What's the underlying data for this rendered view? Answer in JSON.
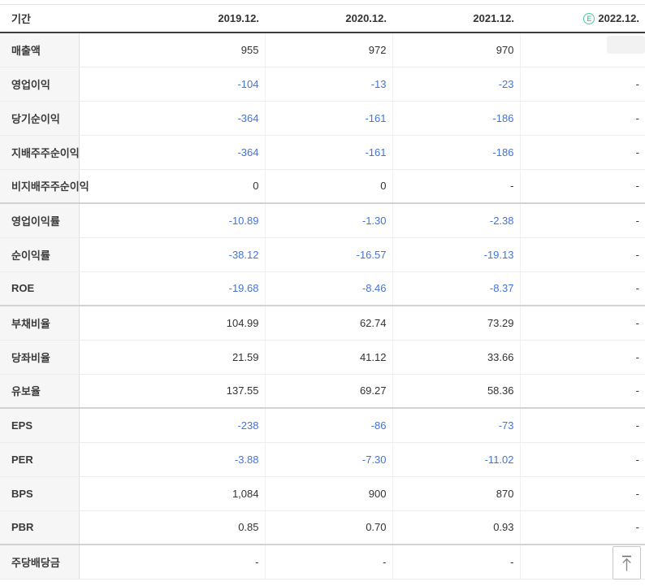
{
  "page": {
    "corner_label": "기간",
    "columns": [
      {
        "label": "2019.12.",
        "estimate": false
      },
      {
        "label": "2020.12.",
        "estimate": false
      },
      {
        "label": "2021.12.",
        "estimate": false
      },
      {
        "label": "2022.12.",
        "estimate": true
      }
    ],
    "estimate_icon": {
      "name": "estimate-badge-icon",
      "letter": "E",
      "color": "#4ecba0"
    },
    "rows": [
      {
        "label": "매출액",
        "values": [
          "955",
          "972",
          "970",
          "-"
        ]
      },
      {
        "label": "영업이익",
        "values": [
          "-104",
          "-13",
          "-23",
          "-"
        ]
      },
      {
        "label": "당기순이익",
        "values": [
          "-364",
          "-161",
          "-186",
          "-"
        ]
      },
      {
        "label": "지배주주순이익",
        "values": [
          "-364",
          "-161",
          "-186",
          "-"
        ]
      },
      {
        "label": "비지배주주순이익",
        "values": [
          "0",
          "0",
          "-",
          "-"
        ],
        "group_end": true
      },
      {
        "label": "영업이익률",
        "values": [
          "-10.89",
          "-1.30",
          "-2.38",
          "-"
        ]
      },
      {
        "label": "순이익률",
        "values": [
          "-38.12",
          "-16.57",
          "-19.13",
          "-"
        ]
      },
      {
        "label": "ROE",
        "values": [
          "-19.68",
          "-8.46",
          "-8.37",
          "-"
        ],
        "group_end": true
      },
      {
        "label": "부채비율",
        "values": [
          "104.99",
          "62.74",
          "73.29",
          "-"
        ]
      },
      {
        "label": "당좌비율",
        "values": [
          "21.59",
          "41.12",
          "33.66",
          "-"
        ]
      },
      {
        "label": "유보율",
        "values": [
          "137.55",
          "69.27",
          "58.36",
          "-"
        ],
        "group_end": true
      },
      {
        "label": "EPS",
        "values": [
          "-238",
          "-86",
          "-73",
          "-"
        ]
      },
      {
        "label": "PER",
        "values": [
          "-3.88",
          "-7.30",
          "-11.02",
          "-"
        ]
      },
      {
        "label": "BPS",
        "values": [
          "1,084",
          "900",
          "870",
          "-"
        ]
      },
      {
        "label": "PBR",
        "values": [
          "0.85",
          "0.70",
          "0.93",
          "-"
        ],
        "group_end": true
      },
      {
        "label": "주당배당금",
        "values": [
          "-",
          "-",
          "-",
          "-"
        ]
      }
    ],
    "colors": {
      "negative_value": "#4374d9",
      "text": "#333333",
      "estimate_green": "#4ecba0",
      "header_border": "#3e3e40"
    },
    "scroll_top_button": {
      "icon": "arrow-up-to-top"
    }
  }
}
